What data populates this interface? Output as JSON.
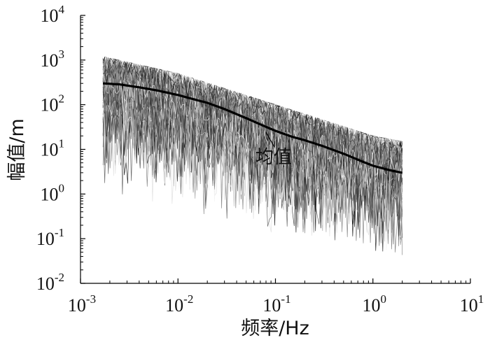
{
  "chart_data": {
    "type": "line",
    "xscale": "log",
    "yscale": "log",
    "xlim": [
      0.001,
      10
    ],
    "ylim": [
      0.01,
      10000
    ],
    "xlabel": "频率/Hz",
    "ylabel": "幅值/m",
    "xticks": [
      {
        "value": 0.001,
        "base": "10",
        "exp": "-3"
      },
      {
        "value": 0.01,
        "base": "10",
        "exp": "-2"
      },
      {
        "value": 0.1,
        "base": "10",
        "exp": "-1"
      },
      {
        "value": 1,
        "base": "10",
        "exp": "0"
      },
      {
        "value": 10,
        "base": "10",
        "exp": "1"
      }
    ],
    "yticks": [
      {
        "value": 0.01,
        "base": "10",
        "exp": "-2"
      },
      {
        "value": 0.1,
        "base": "10",
        "exp": "-1"
      },
      {
        "value": 1,
        "base": "10",
        "exp": "0"
      },
      {
        "value": 10,
        "base": "10",
        "exp": "1"
      },
      {
        "value": 100,
        "base": "10",
        "exp": "2"
      },
      {
        "value": 1000,
        "base": "10",
        "exp": "3"
      },
      {
        "value": 10000,
        "base": "10",
        "exp": "4"
      }
    ],
    "grid": false,
    "annotation": {
      "text": "均值",
      "points_to": {
        "x": 0.08,
        "y": 24
      }
    },
    "mean_series": {
      "name": "均值",
      "color": "#000000",
      "x": [
        0.0017,
        0.0025,
        0.004,
        0.006,
        0.01,
        0.015,
        0.02,
        0.03,
        0.05,
        0.08,
        0.1,
        0.15,
        0.2,
        0.3,
        0.5,
        0.8,
        1.0,
        1.5,
        2.0
      ],
      "y": [
        300,
        285,
        245,
        210,
        165,
        130,
        110,
        80,
        50,
        32,
        26,
        19,
        16,
        12,
        8,
        5.2,
        4.3,
        3.4,
        3.0
      ]
    },
    "sample_spectra": {
      "x_range": [
        0.0017,
        2.0
      ],
      "upper_envelope_y": {
        "x": [
          0.0017,
          0.01,
          0.1,
          1.0,
          2.0
        ],
        "y": [
          1200,
          500,
          100,
          20,
          15
        ]
      },
      "lower_envelope_y": {
        "x": [
          0.0017,
          0.01,
          0.1,
          1.0,
          2.0
        ],
        "y": [
          1,
          0.3,
          0.06,
          0.03,
          0.02
        ]
      },
      "colors": [
        "#111111",
        "#333333",
        "#555555",
        "#777777",
        "#999999",
        "#bbbbbb",
        "#dddddd",
        "#f2f2f2"
      ]
    }
  }
}
